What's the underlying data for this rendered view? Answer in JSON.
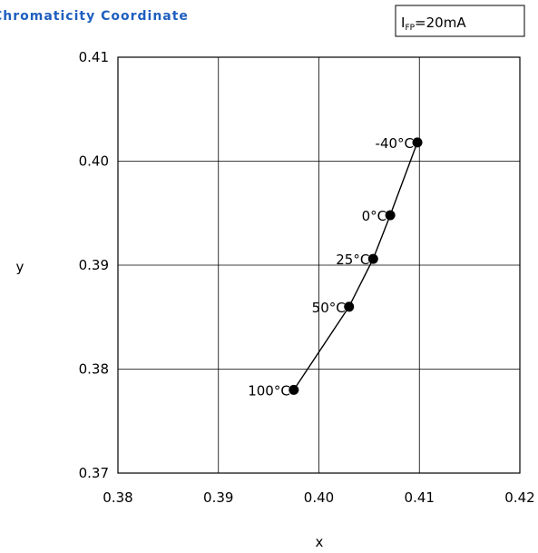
{
  "chart_data": {
    "type": "scatter",
    "title": "Chromaticity Coordinate",
    "condition_box": {
      "symbol": "I",
      "subscript": "FP",
      "value": "=20mA"
    },
    "xlabel": "x",
    "ylabel": "y",
    "xlim": [
      0.38,
      0.42
    ],
    "ylim": [
      0.37,
      0.41
    ],
    "x_ticks": [
      "0.38",
      "0.39",
      "0.40",
      "0.41",
      "0.42"
    ],
    "y_ticks": [
      "0.37",
      "0.38",
      "0.39",
      "0.40",
      "0.41"
    ],
    "grid": true,
    "series": [
      {
        "points": [
          {
            "x": 0.4098,
            "y": 0.4018,
            "label": "-40°C"
          },
          {
            "x": 0.4071,
            "y": 0.3948,
            "label": "0°C"
          },
          {
            "x": 0.4054,
            "y": 0.3906,
            "label": "25°C"
          },
          {
            "x": 0.403,
            "y": 0.386,
            "label": "50°C"
          },
          {
            "x": 0.3975,
            "y": 0.378,
            "label": "100°C"
          }
        ]
      }
    ]
  }
}
